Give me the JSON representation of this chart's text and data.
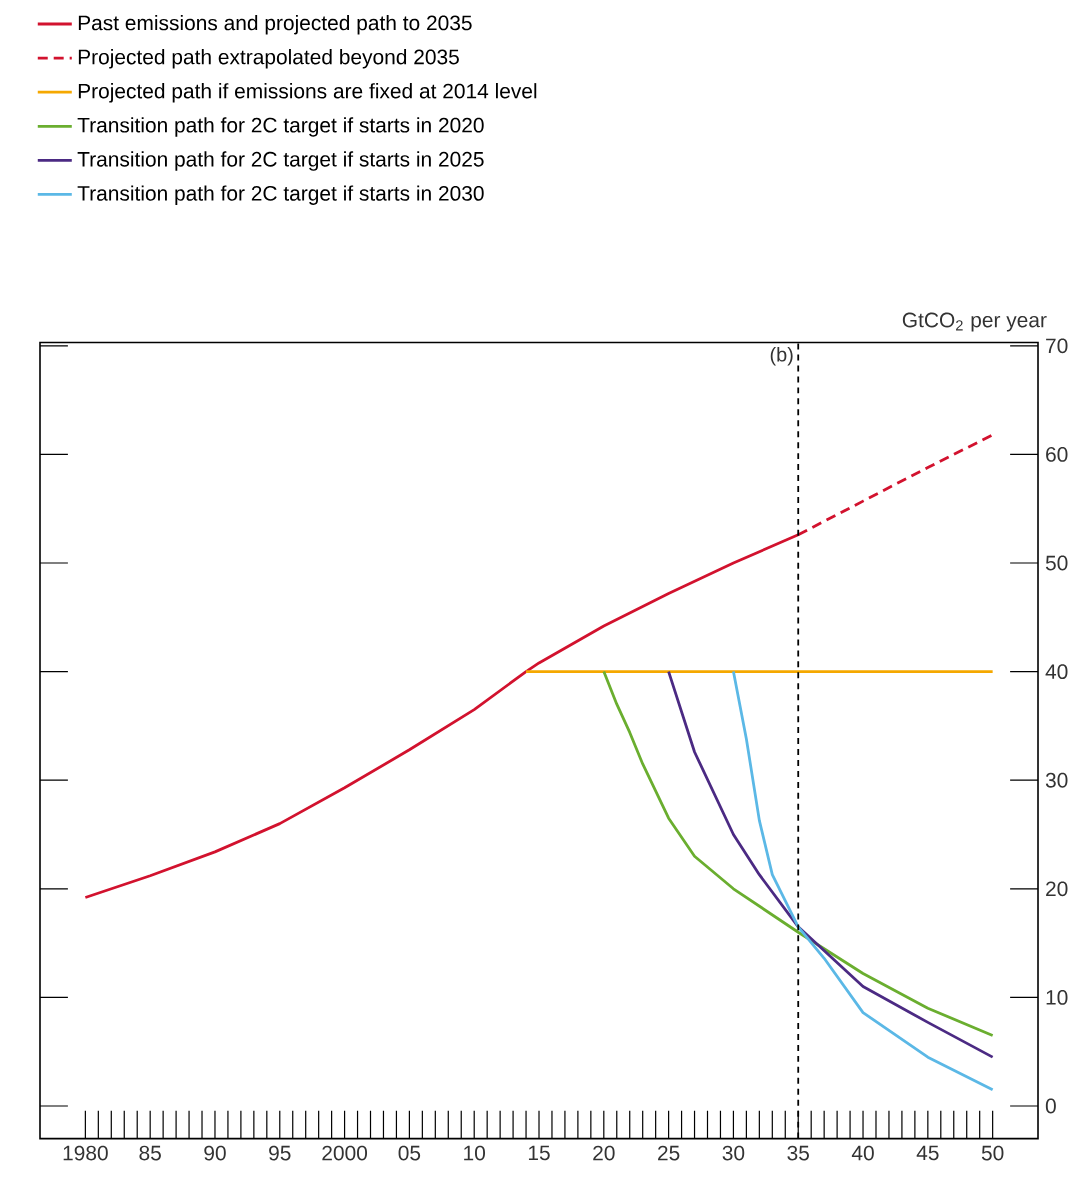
{
  "chart_data": {
    "type": "line",
    "ylabel": "GtCO$_{2}$ per year",
    "series": [
      {
        "name": "Past emissions and projected path to 2035",
        "color": "#d2122e",
        "line_style": "solid",
        "x": [
          1980,
          1985,
          1990,
          1995,
          2000,
          2005,
          2010,
          2014,
          2015,
          2020,
          2025,
          2030,
          2035
        ],
        "values": [
          19.2,
          21.2,
          23.4,
          26,
          29.3,
          32.8,
          36.5,
          40,
          40.8,
          44.2,
          47.2,
          50,
          52.6
        ]
      },
      {
        "name": "Projected path extrapolated beyond 2035",
        "color": "#d2122e",
        "line_style": "dashed",
        "x": [
          2035,
          2040,
          2045,
          2050
        ],
        "values": [
          52.6,
          55.7,
          58.8,
          61.8
        ]
      },
      {
        "name": "Projected path if emissions are fixed at 2014 level",
        "color": "#f5a800",
        "line_style": "solid",
        "x": [
          2014,
          2050
        ],
        "values": [
          40,
          40
        ]
      },
      {
        "name": "Transition path for 2C target if starts in 2020",
        "color": "#6aae2f",
        "line_style": "solid",
        "x": [
          2020,
          2021,
          2022,
          2023,
          2025,
          2027,
          2030,
          2035,
          2040,
          2045,
          2050
        ],
        "values": [
          40,
          37,
          34.4,
          31.5,
          26.5,
          23,
          20,
          16,
          12.2,
          9,
          6.5
        ]
      },
      {
        "name": "Transition path for 2C target if starts in 2025",
        "color": "#4b2a83",
        "line_style": "solid",
        "x": [
          2025,
          2027,
          2030,
          2032,
          2035,
          2040,
          2045,
          2050
        ],
        "values": [
          40,
          32.6,
          25,
          21.3,
          16.5,
          11,
          7.7,
          4.5
        ]
      },
      {
        "name": "Transition path for 2C target if starts in 2030",
        "color": "#5bb8e6",
        "line_style": "solid",
        "x": [
          2030,
          2031,
          2032,
          2033,
          2035,
          2037,
          2040,
          2045,
          2050
        ],
        "values": [
          40,
          33.8,
          26.3,
          21.3,
          16.5,
          13.6,
          8.6,
          4.5,
          1.5
        ]
      }
    ],
    "xlim": [
      1976.5,
      2053.5
    ],
    "ylim": [
      -3,
      70.3
    ],
    "yticks": [
      0,
      10,
      20,
      30,
      40,
      50,
      60,
      70
    ],
    "xticks": [
      {
        "value": 1980,
        "label": "1980"
      },
      {
        "value": 1981,
        "label": null
      },
      {
        "value": 1982,
        "label": null
      },
      {
        "value": 1983,
        "label": null
      },
      {
        "value": 1984,
        "label": null
      },
      {
        "value": 1985,
        "label": "85"
      },
      {
        "value": 1986,
        "label": null
      },
      {
        "value": 1987,
        "label": null
      },
      {
        "value": 1988,
        "label": null
      },
      {
        "value": 1989,
        "label": null
      },
      {
        "value": 1990,
        "label": "90"
      },
      {
        "value": 1991,
        "label": null
      },
      {
        "value": 1992,
        "label": null
      },
      {
        "value": 1993,
        "label": null
      },
      {
        "value": 1994,
        "label": null
      },
      {
        "value": 1995,
        "label": "95"
      },
      {
        "value": 1996,
        "label": null
      },
      {
        "value": 1997,
        "label": null
      },
      {
        "value": 1998,
        "label": null
      },
      {
        "value": 1999,
        "label": null
      },
      {
        "value": 2000,
        "label": "2000"
      },
      {
        "value": 2001,
        "label": null
      },
      {
        "value": 2002,
        "label": null
      },
      {
        "value": 2003,
        "label": null
      },
      {
        "value": 2004,
        "label": null
      },
      {
        "value": 2005,
        "label": "05"
      },
      {
        "value": 2006,
        "label": null
      },
      {
        "value": 2007,
        "label": null
      },
      {
        "value": 2008,
        "label": null
      },
      {
        "value": 2009,
        "label": null
      },
      {
        "value": 2010,
        "label": "10"
      },
      {
        "value": 2011,
        "label": null
      },
      {
        "value": 2012,
        "label": null
      },
      {
        "value": 2013,
        "label": null
      },
      {
        "value": 2014,
        "label": null
      },
      {
        "value": 2015,
        "label": "15"
      },
      {
        "value": 2016,
        "label": null
      },
      {
        "value": 2017,
        "label": null
      },
      {
        "value": 2018,
        "label": null
      },
      {
        "value": 2019,
        "label": null
      },
      {
        "value": 2020,
        "label": "20"
      },
      {
        "value": 2021,
        "label": null
      },
      {
        "value": 2022,
        "label": null
      },
      {
        "value": 2023,
        "label": null
      },
      {
        "value": 2024,
        "label": null
      },
      {
        "value": 2025,
        "label": "25"
      },
      {
        "value": 2026,
        "label": null
      },
      {
        "value": 2027,
        "label": null
      },
      {
        "value": 2028,
        "label": null
      },
      {
        "value": 2029,
        "label": null
      },
      {
        "value": 2030,
        "label": "30"
      },
      {
        "value": 2031,
        "label": null
      },
      {
        "value": 2032,
        "label": null
      },
      {
        "value": 2033,
        "label": null
      },
      {
        "value": 2034,
        "label": null
      },
      {
        "value": 2035,
        "label": "35"
      },
      {
        "value": 2036,
        "label": null
      },
      {
        "value": 2037,
        "label": null
      },
      {
        "value": 2038,
        "label": null
      },
      {
        "value": 2039,
        "label": null
      },
      {
        "value": 2040,
        "label": "40"
      },
      {
        "value": 2041,
        "label": null
      },
      {
        "value": 2042,
        "label": null
      },
      {
        "value": 2043,
        "label": null
      },
      {
        "value": 2044,
        "label": null
      },
      {
        "value": 2045,
        "label": "45"
      },
      {
        "value": 2046,
        "label": null
      },
      {
        "value": 2047,
        "label": null
      },
      {
        "value": 2048,
        "label": null
      },
      {
        "value": 2049,
        "label": null
      },
      {
        "value": 2050,
        "label": "50"
      }
    ],
    "ref_lines": [
      {
        "axis": "x",
        "value": 2035,
        "label": "(b)",
        "color": "#000000",
        "line_style": "dashed"
      }
    ],
    "legend": "top left",
    "grid": false,
    "marker": "none"
  }
}
